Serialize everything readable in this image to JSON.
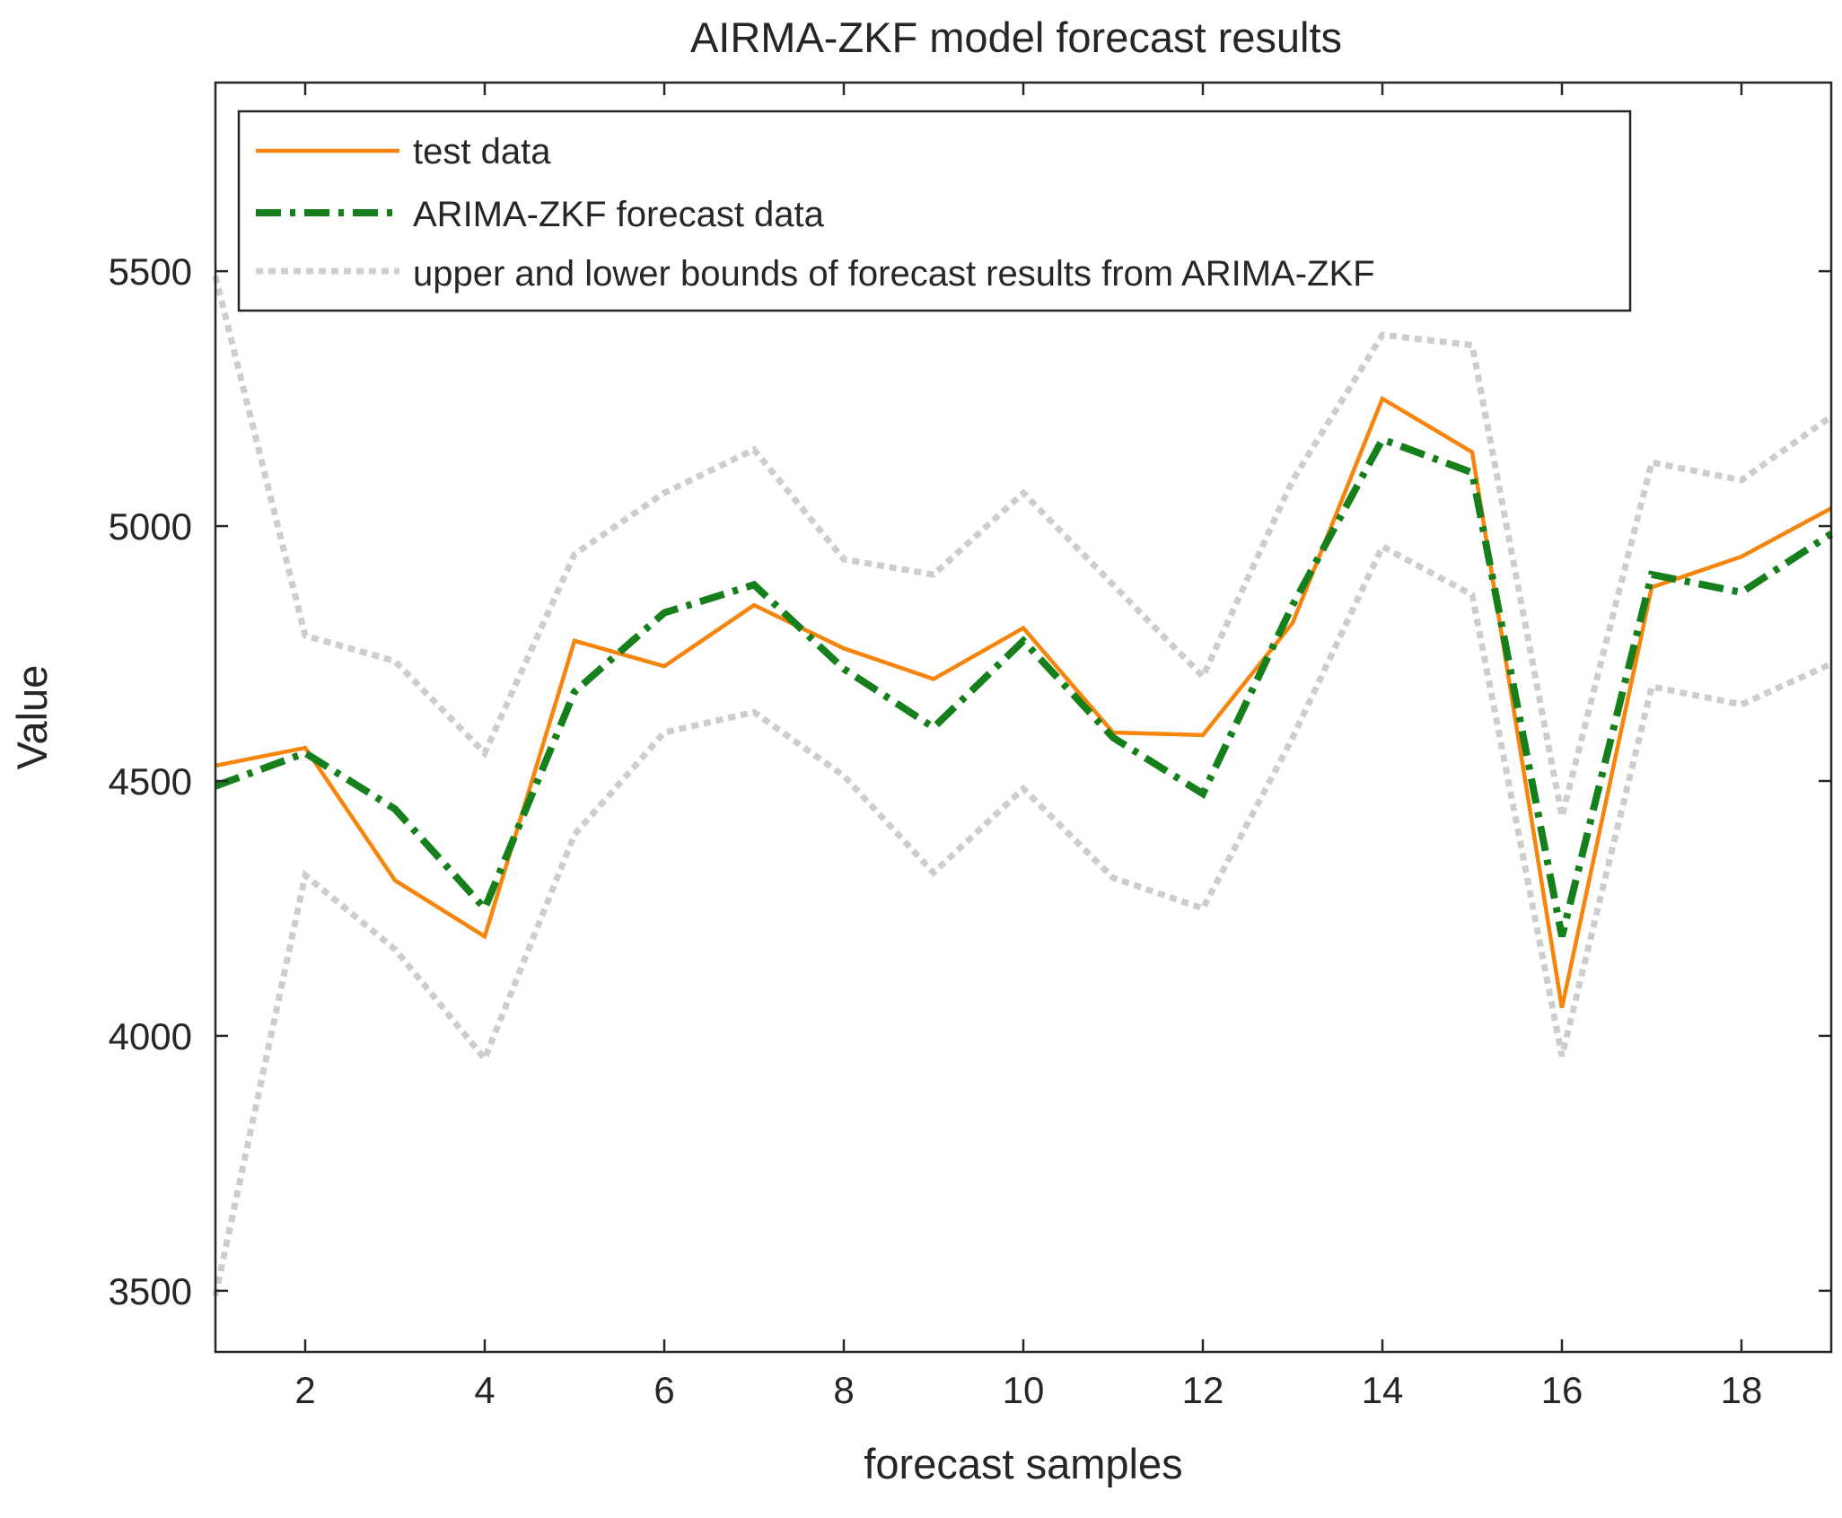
{
  "chart_data": {
    "type": "line",
    "title": "AIRMA-ZKF model forecast results",
    "xlabel": "forecast samples",
    "ylabel": "Value",
    "xlim": [
      1,
      19
    ],
    "ylim": [
      3380,
      5870
    ],
    "xticks": [
      2,
      4,
      6,
      8,
      10,
      12,
      14,
      16,
      18
    ],
    "yticks": [
      3500,
      4000,
      4500,
      5000,
      5500
    ],
    "grid": false,
    "legend_position": "top-left",
    "x": [
      1,
      2,
      3,
      4,
      5,
      6,
      7,
      8,
      9,
      10,
      11,
      12,
      13,
      14,
      15,
      16,
      17,
      18,
      19
    ],
    "series": [
      {
        "name": "test data",
        "color": "#F7840B",
        "style": "solid",
        "values": [
          4530,
          4565,
          4305,
          4195,
          4775,
          4725,
          4845,
          4760,
          4700,
          4800,
          4595,
          4590,
          4810,
          5250,
          5145,
          4055,
          4880,
          4940,
          5035
        ]
      },
      {
        "name": "ARIMA-ZKF forecast data",
        "color": "#157F1B",
        "style": "dashdot",
        "values": [
          4490,
          4555,
          4445,
          4250,
          4675,
          4830,
          4885,
          4720,
          4605,
          4775,
          4585,
          4475,
          4845,
          5170,
          5105,
          4195,
          4905,
          4870,
          4985
        ]
      },
      {
        "name": "upper and lower bounds of forecast results from ARIMA-ZKF",
        "color": "#CDCDCD",
        "style": "dotted",
        "values": [
          5490,
          4785,
          4735,
          4555,
          4945,
          5065,
          5150,
          4935,
          4905,
          5065,
          4885,
          4705,
          5090,
          5375,
          5355,
          4430,
          5125,
          5090,
          5215
        ]
      },
      {
        "name": "lower bound",
        "color": "#CDCDCD",
        "style": "dotted",
        "in_legend": false,
        "values": [
          3490,
          4315,
          4170,
          3955,
          4395,
          4595,
          4635,
          4510,
          4320,
          4485,
          4310,
          4250,
          4585,
          4960,
          4865,
          3960,
          4685,
          4650,
          4730
        ]
      }
    ]
  }
}
